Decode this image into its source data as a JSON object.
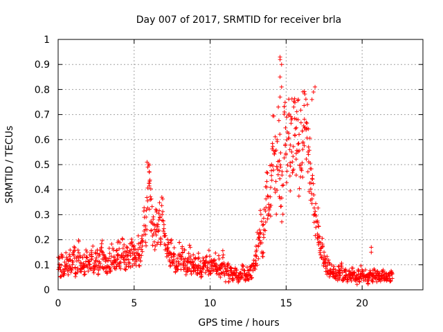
{
  "chart_data": {
    "type": "scatter",
    "title": "Day 007 of 2017, SRMTID for receiver brla",
    "xlabel": "GPS time / hours",
    "ylabel": "SRMTID / TECUs",
    "xlim": [
      0,
      24
    ],
    "ylim": [
      0,
      1
    ],
    "xticks": [
      0,
      5,
      10,
      15,
      20
    ],
    "xtick_labels": [
      "0",
      "5",
      "10",
      "15",
      "20"
    ],
    "yticks": [
      0,
      0.1,
      0.2,
      0.3,
      0.4,
      0.5,
      0.6,
      0.7,
      0.8,
      0.9,
      1
    ],
    "ytick_labels": [
      "0",
      "0.1",
      "0.2",
      "0.3",
      "0.4",
      "0.5",
      "0.6",
      "0.7",
      "0.8",
      "0.9",
      "1"
    ],
    "grid": true,
    "marker": "+",
    "marker_color": "#ff0000",
    "series": [
      {
        "name": "SRMTID",
        "x_start": 0,
        "x_step": 0.1,
        "y": [
          0.1,
          0.08,
          0.11,
          0.07,
          0.09,
          0.12,
          0.1,
          0.14,
          0.09,
          0.11,
          0.13,
          0.08,
          0.1,
          0.15,
          0.11,
          0.09,
          0.12,
          0.1,
          0.13,
          0.11,
          0.1,
          0.12,
          0.14,
          0.09,
          0.11,
          0.13,
          0.1,
          0.12,
          0.15,
          0.11,
          0.12,
          0.1,
          0.09,
          0.13,
          0.11,
          0.14,
          0.12,
          0.1,
          0.13,
          0.15,
          0.14,
          0.12,
          0.16,
          0.13,
          0.11,
          0.15,
          0.12,
          0.14,
          0.16,
          0.13,
          0.15,
          0.13,
          0.17,
          0.14,
          0.16,
          0.21,
          0.27,
          0.24,
          0.33,
          0.46,
          0.38,
          0.3,
          0.24,
          0.21,
          0.26,
          0.22,
          0.29,
          0.25,
          0.3,
          0.22,
          0.19,
          0.16,
          0.14,
          0.12,
          0.15,
          0.11,
          0.13,
          0.1,
          0.12,
          0.14,
          0.11,
          0.13,
          0.1,
          0.12,
          0.09,
          0.11,
          0.13,
          0.1,
          0.12,
          0.09,
          0.1,
          0.08,
          0.11,
          0.09,
          0.07,
          0.1,
          0.08,
          0.11,
          0.09,
          0.12,
          0.08,
          0.1,
          0.09,
          0.11,
          0.08,
          0.1,
          0.07,
          0.09,
          0.12,
          0.08,
          0.06,
          0.08,
          0.05,
          0.07,
          0.06,
          0.05,
          0.07,
          0.06,
          0.05,
          0.06,
          0.05,
          0.07,
          0.06,
          0.05,
          0.07,
          0.06,
          0.08,
          0.07,
          0.09,
          0.11,
          0.14,
          0.18,
          0.22,
          0.25,
          0.2,
          0.28,
          0.33,
          0.38,
          0.35,
          0.42,
          0.48,
          0.55,
          0.5,
          0.45,
          0.6,
          0.52,
          0.48,
          0.41,
          0.58,
          0.65,
          0.55,
          0.62,
          0.5,
          0.68,
          0.6,
          0.7,
          0.56,
          0.64,
          0.52,
          0.58,
          0.6,
          0.68,
          0.72,
          0.62,
          0.55,
          0.5,
          0.45,
          0.4,
          0.35,
          0.3,
          0.26,
          0.22,
          0.19,
          0.16,
          0.14,
          0.12,
          0.1,
          0.09,
          0.08,
          0.07,
          0.06,
          0.07,
          0.06,
          0.05,
          0.07,
          0.06,
          0.08,
          0.05,
          0.06,
          0.07,
          0.05,
          0.06,
          0.05,
          0.07,
          0.06,
          0.05,
          0.04,
          0.06,
          0.05,
          0.07,
          0.06,
          0.05,
          0.06,
          0.04,
          0.05,
          0.06,
          0.05,
          0.07,
          0.06,
          0.05,
          0.06,
          0.05,
          0.04,
          0.06,
          0.05,
          0.06,
          0.05,
          0.07,
          0.05,
          0.06
        ],
        "spread": [
          0.03,
          0.03,
          0.04,
          0.03,
          0.03,
          0.04,
          0.04,
          0.05,
          0.03,
          0.04,
          0.05,
          0.03,
          0.04,
          0.05,
          0.04,
          0.03,
          0.04,
          0.04,
          0.05,
          0.04,
          0.04,
          0.04,
          0.05,
          0.03,
          0.04,
          0.05,
          0.04,
          0.04,
          0.05,
          0.04,
          0.04,
          0.04,
          0.03,
          0.05,
          0.04,
          0.05,
          0.04,
          0.04,
          0.05,
          0.05,
          0.05,
          0.04,
          0.05,
          0.05,
          0.04,
          0.05,
          0.04,
          0.05,
          0.05,
          0.05,
          0.05,
          0.05,
          0.05,
          0.05,
          0.05,
          0.06,
          0.07,
          0.07,
          0.09,
          0.06,
          0.09,
          0.08,
          0.07,
          0.06,
          0.07,
          0.06,
          0.07,
          0.07,
          0.08,
          0.06,
          0.06,
          0.05,
          0.05,
          0.04,
          0.05,
          0.04,
          0.05,
          0.04,
          0.04,
          0.05,
          0.04,
          0.05,
          0.04,
          0.04,
          0.03,
          0.04,
          0.05,
          0.04,
          0.04,
          0.03,
          0.04,
          0.03,
          0.04,
          0.03,
          0.03,
          0.04,
          0.03,
          0.04,
          0.03,
          0.05,
          0.03,
          0.04,
          0.03,
          0.04,
          0.03,
          0.04,
          0.03,
          0.03,
          0.05,
          0.03,
          0.03,
          0.03,
          0.02,
          0.03,
          0.02,
          0.02,
          0.03,
          0.02,
          0.02,
          0.02,
          0.02,
          0.03,
          0.02,
          0.02,
          0.03,
          0.02,
          0.03,
          0.03,
          0.03,
          0.04,
          0.05,
          0.06,
          0.07,
          0.08,
          0.07,
          0.09,
          0.1,
          0.12,
          0.11,
          0.13,
          0.15,
          0.18,
          0.16,
          0.15,
          0.18,
          0.16,
          0.15,
          0.14,
          0.17,
          0.15,
          0.16,
          0.15,
          0.16,
          0.13,
          0.15,
          0.12,
          0.15,
          0.14,
          0.16,
          0.16,
          0.16,
          0.15,
          0.1,
          0.15,
          0.14,
          0.13,
          0.12,
          0.11,
          0.1,
          0.09,
          0.08,
          0.07,
          0.06,
          0.05,
          0.05,
          0.04,
          0.04,
          0.03,
          0.03,
          0.03,
          0.02,
          0.03,
          0.02,
          0.02,
          0.03,
          0.02,
          0.03,
          0.02,
          0.02,
          0.03,
          0.02,
          0.02,
          0.02,
          0.03,
          0.02,
          0.02,
          0.02,
          0.02,
          0.02,
          0.03,
          0.02,
          0.02,
          0.02,
          0.02,
          0.02,
          0.02,
          0.02,
          0.03,
          0.02,
          0.02,
          0.02,
          0.02,
          0.02,
          0.02,
          0.02,
          0.02,
          0.02,
          0.03,
          0.02,
          0.02
        ],
        "peaks": [
          {
            "x": 14.6,
            "y": 0.93
          },
          {
            "x": 14.6,
            "y": 0.92
          },
          {
            "x": 14.7,
            "y": 0.9
          },
          {
            "x": 14.6,
            "y": 0.85
          },
          {
            "x": 14.7,
            "y": 0.81
          },
          {
            "x": 14.6,
            "y": 0.77
          },
          {
            "x": 16.9,
            "y": 0.81
          },
          {
            "x": 16.8,
            "y": 0.79
          },
          {
            "x": 16.7,
            "y": 0.76
          },
          {
            "x": 15.8,
            "y": 0.76
          },
          {
            "x": 16.4,
            "y": 0.74
          },
          {
            "x": 15.5,
            "y": 0.73
          },
          {
            "x": 5.85,
            "y": 0.51
          },
          {
            "x": 5.9,
            "y": 0.49
          },
          {
            "x": 6.0,
            "y": 0.47
          },
          {
            "x": 20.6,
            "y": 0.17
          },
          {
            "x": 20.6,
            "y": 0.15
          }
        ]
      }
    ]
  }
}
